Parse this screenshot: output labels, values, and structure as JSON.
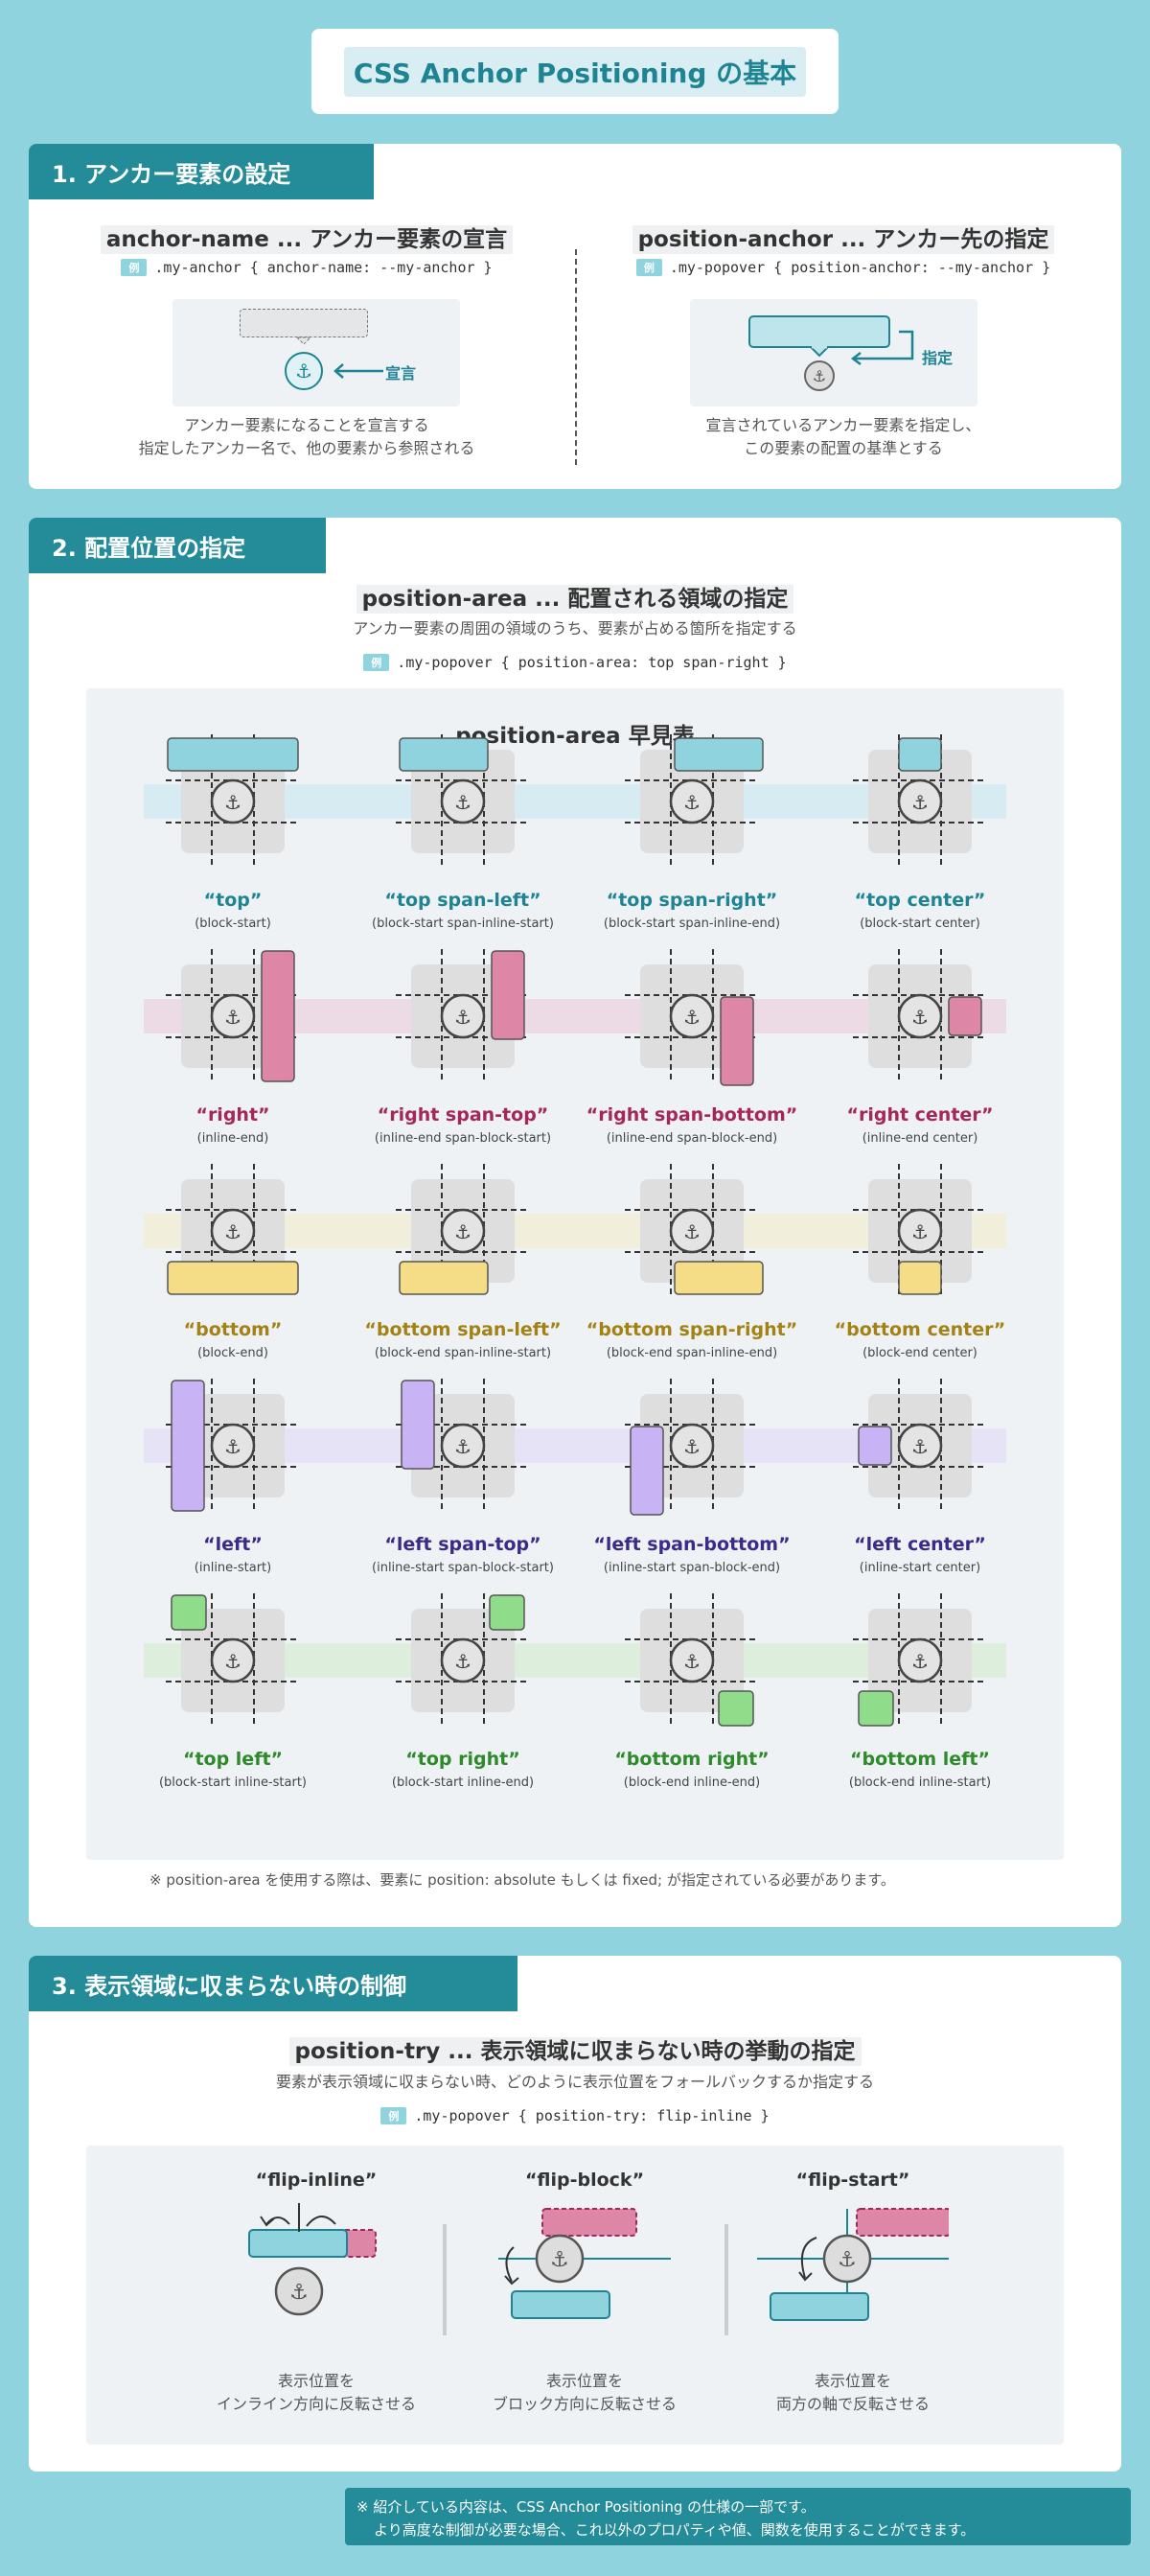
{
  "title": "CSS Anchor Positioning の基本",
  "colors": {
    "teal": "#248b98",
    "blue": "#8fd3df",
    "pink": "#dd86a6",
    "yellow": "#f5dc86",
    "purple": "#c8b4f5",
    "green": "#8fdc8a"
  },
  "section1": {
    "heading": "1. アンカー要素の設定",
    "left": {
      "title": "anchor-name ... アンカー要素の宣言",
      "ex": "例",
      "code": ".my-anchor { anchor-name: --my-anchor }",
      "badge": "宣言",
      "desc1": "アンカー要素になることを宣言する",
      "desc2": "指定したアンカー名で、他の要素から参照される"
    },
    "right": {
      "title": "position-anchor ... アンカー先の指定",
      "ex": "例",
      "code": ".my-popover { position-anchor: --my-anchor }",
      "badge": "指定",
      "desc1": "宣言されているアンカー要素を指定し、",
      "desc2": "この要素の配置の基準とする"
    }
  },
  "section2": {
    "heading": "2. 配置位置の指定",
    "title": "position-area ... 配置される領域の指定",
    "subtitle": "アンカー要素の周囲の領域のうち、要素が占める箇所を指定する",
    "ex": "例",
    "code": ".my-popover { position-area: top span-right }",
    "panel_title": "position-area 早見表",
    "rows": [
      {
        "color": "#8fd3df",
        "band": "#d6ecf2",
        "text": "#1e8494",
        "cells": [
          {
            "label": "“top”",
            "sub": "(block-start)"
          },
          {
            "label": "“top span-left”",
            "sub": "(block-start span-inline-start)"
          },
          {
            "label": "“top span-right”",
            "sub": "(block-start span-inline-end)"
          },
          {
            "label": "“top center”",
            "sub": "(block-start center)"
          }
        ]
      },
      {
        "color": "#dd86a6",
        "band": "#ecdbe4",
        "text": "#a4265a",
        "cells": [
          {
            "label": "“right”",
            "sub": "(inline-end)"
          },
          {
            "label": "“right span-top”",
            "sub": "(inline-end span-block-start)"
          },
          {
            "label": "“right span-bottom”",
            "sub": "(inline-end span-block-end)"
          },
          {
            "label": "“right center”",
            "sub": "(inline-end center)"
          }
        ]
      },
      {
        "color": "#f5dc86",
        "band": "#f1eedc",
        "text": "#a38214",
        "cells": [
          {
            "label": "“bottom”",
            "sub": "(block-end)"
          },
          {
            "label": "“bottom span-left”",
            "sub": "(block-end span-inline-start)"
          },
          {
            "label": "“bottom span-right”",
            "sub": "(block-end span-inline-end)"
          },
          {
            "label": "“bottom center”",
            "sub": "(block-end center)"
          }
        ]
      },
      {
        "color": "#c8b4f5",
        "band": "#e6e3f6",
        "text": "#3c2a8a",
        "cells": [
          {
            "label": "“left”",
            "sub": "(inline-start)"
          },
          {
            "label": "“left span-top”",
            "sub": "(inline-start span-block-start)"
          },
          {
            "label": "“left span-bottom”",
            "sub": "(inline-start span-block-end)"
          },
          {
            "label": "“left center”",
            "sub": "(inline-start center)"
          }
        ]
      },
      {
        "color": "#8fdc8a",
        "band": "#deeedd",
        "text": "#2e8a2a",
        "cells": [
          {
            "label": "“top left”",
            "sub": "(block-start inline-start)"
          },
          {
            "label": "“top right”",
            "sub": "(block-start inline-end)"
          },
          {
            "label": "“bottom right”",
            "sub": "(block-end inline-end)"
          },
          {
            "label": "“bottom left”",
            "sub": "(block-end inline-start)"
          }
        ]
      }
    ],
    "note": "※ position-area を使用する際は、要素に position: absolute もしくは fixed; が指定されている必要があります。"
  },
  "section3": {
    "heading": "3. 表示領域に収まらない時の制御",
    "title": "position-try ... 表示領域に収まらない時の挙動の指定",
    "subtitle": "要素が表示領域に収まらない時、どのように表示位置をフォールバックするか指定する",
    "ex": "例",
    "code": ".my-popover { position-try: flip-inline }",
    "items": [
      {
        "label": "“flip-inline”",
        "desc1": "表示位置を",
        "desc2": "インライン方向に反転させる"
      },
      {
        "label": "“flip-block”",
        "desc1": "表示位置を",
        "desc2": "ブロック方向に反転させる"
      },
      {
        "label": "“flip-start”",
        "desc1": "表示位置を",
        "desc2": "両方の軸で反転させる"
      }
    ]
  },
  "footer": {
    "line1": "※ 紹介している内容は、CSS Anchor Positioning の仕様の一部です。",
    "line2": "より高度な制御が必要な場合、これ以外のプロパティや値、関数を使用することができます。"
  }
}
